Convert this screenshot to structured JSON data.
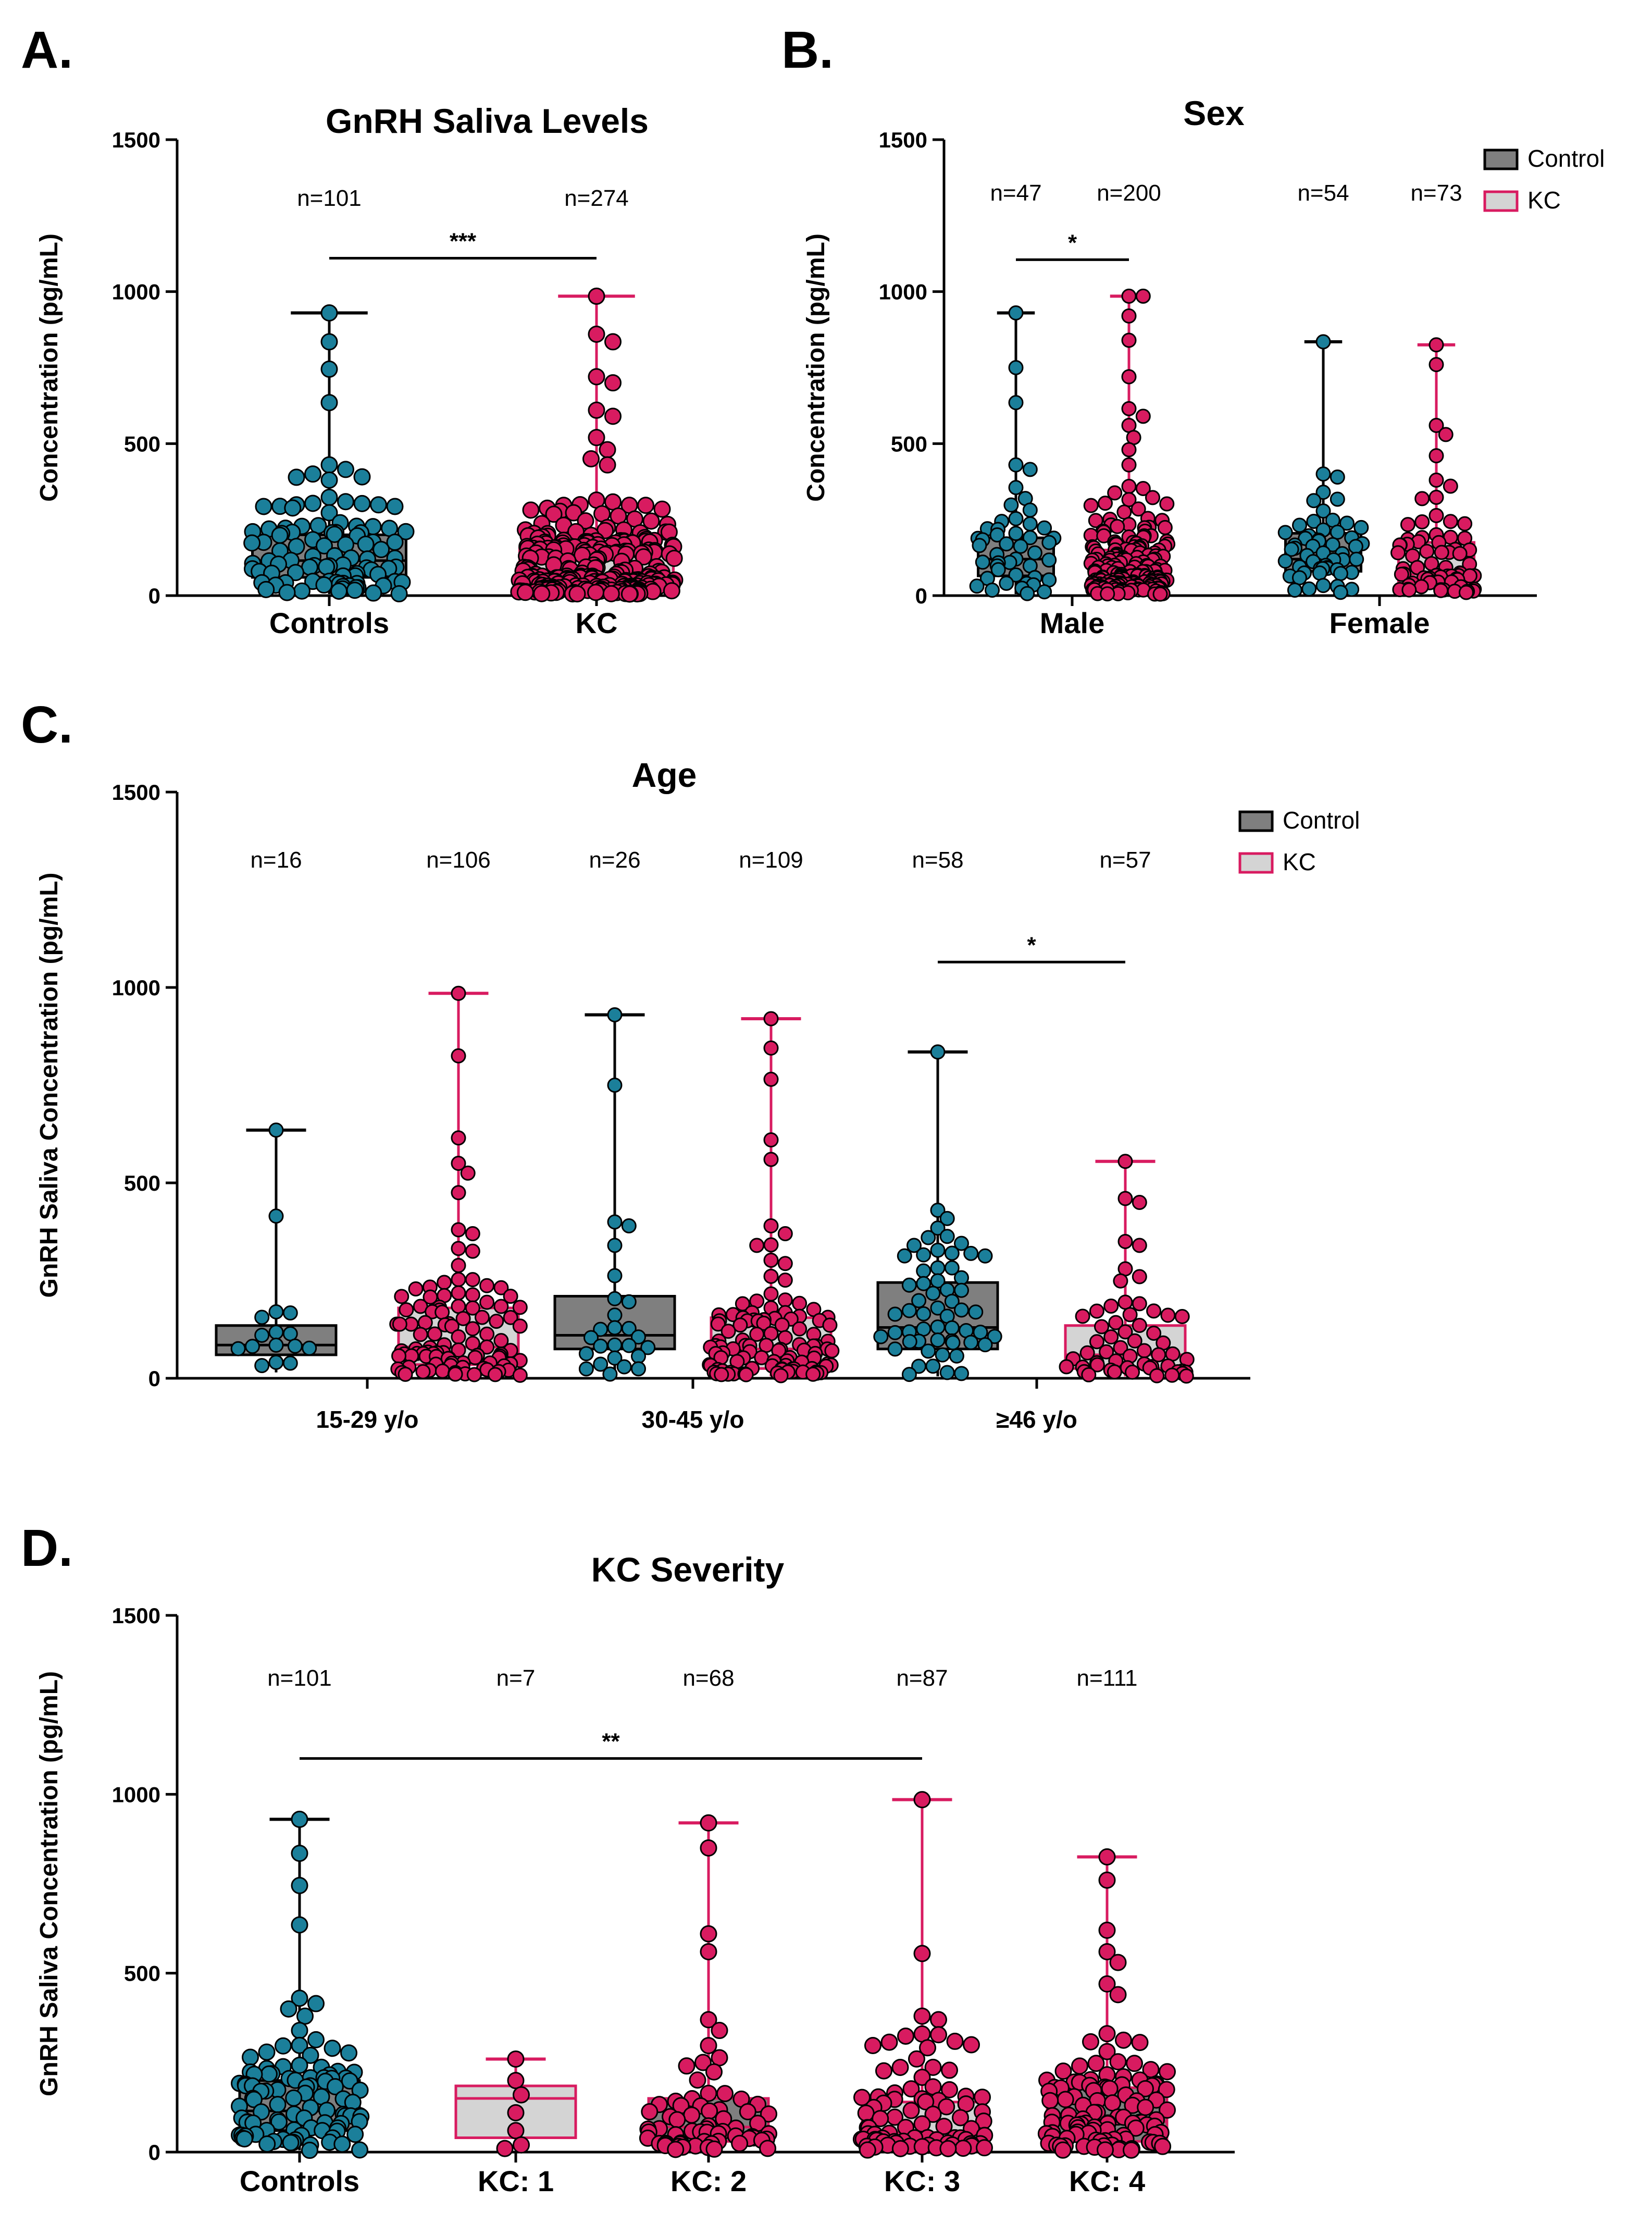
{
  "colors": {
    "control_fill": "#7f7f7f",
    "kc_fill": "#d4d4d4",
    "control_point": "#1b7f9a",
    "kc_point": "#d81b60",
    "kc_edge": "#d81b60",
    "axis": "#000000"
  },
  "chart_data": [
    {
      "id": "A",
      "panel_label": "A.",
      "type": "box-swarm",
      "title": "GnRH Saliva Levels",
      "ylabel": "Concentration (pg/mL)",
      "ylim": [
        0,
        1500
      ],
      "yticks": [
        "0",
        "500",
        "1000",
        "1500"
      ],
      "categories": [
        "Controls",
        "KC"
      ],
      "groups": [
        {
          "category": "Controls",
          "series": "Control",
          "n": "n=101",
          "count": 101,
          "q1": 60,
          "median": 115,
          "q3": 200,
          "min": 5,
          "max": 930,
          "outliers": [
            930,
            835,
            745,
            635,
            430,
            415,
            400,
            380
          ]
        },
        {
          "category": "KC",
          "series": "KC",
          "n": "n=274",
          "count": 274,
          "q1": 30,
          "median": 65,
          "q3": 155,
          "min": 5,
          "max": 985,
          "outliers": [
            985,
            860,
            835,
            720,
            700,
            610,
            590,
            520,
            480,
            450,
            430
          ]
        }
      ],
      "significance": [
        {
          "from": 0,
          "to": 1,
          "label": "***",
          "y": 1110
        }
      ]
    },
    {
      "id": "B",
      "panel_label": "B.",
      "type": "box-swarm",
      "title": "Sex",
      "ylabel": "Concentration (pg/mL)",
      "ylim": [
        0,
        1500
      ],
      "yticks": [
        "0",
        "500",
        "1000",
        "1500"
      ],
      "categories": [
        "Male",
        "Female"
      ],
      "legend": [
        {
          "name": "Control"
        },
        {
          "name": "KC"
        }
      ],
      "groups": [
        {
          "category": "Male",
          "series": "Control",
          "n": "n=47",
          "count": 47,
          "q1": 65,
          "median": 120,
          "q3": 190,
          "min": 5,
          "max": 930,
          "outliers": [
            930,
            750,
            635,
            430,
            415
          ]
        },
        {
          "category": "Male",
          "series": "KC",
          "n": "n=200",
          "count": 200,
          "q1": 30,
          "median": 65,
          "q3": 150,
          "min": 5,
          "max": 985,
          "outliers": [
            985,
            985,
            920,
            840,
            720,
            615,
            590,
            560,
            520,
            480,
            430
          ]
        },
        {
          "category": "Female",
          "series": "Control",
          "n": "n=54",
          "count": 54,
          "q1": 80,
          "median": 120,
          "q3": 205,
          "min": 10,
          "max": 835,
          "outliers": [
            835,
            400,
            390,
            340
          ]
        },
        {
          "category": "Female",
          "series": "KC",
          "n": "n=73",
          "count": 73,
          "q1": 40,
          "median": 70,
          "q3": 175,
          "min": 5,
          "max": 825,
          "outliers": [
            825,
            760,
            560,
            530,
            460,
            380,
            360
          ]
        }
      ],
      "significance": [
        {
          "from": 0,
          "to": 1,
          "label": "*",
          "y": 1105
        }
      ]
    },
    {
      "id": "C",
      "panel_label": "C.",
      "type": "box-swarm",
      "title": "Age",
      "ylabel": "GnRH Saliva Concentration (pg/mL)",
      "ylim": [
        0,
        1500
      ],
      "yticks": [
        "0",
        "500",
        "1000",
        "1500"
      ],
      "categories": [
        "15-29 y/o",
        "30-45 y/o",
        "≥46 y/o"
      ],
      "legend": [
        {
          "name": "Control"
        },
        {
          "name": "KC"
        }
      ],
      "groups": [
        {
          "category": "15-29 y/o",
          "series": "Control",
          "n": "n=16",
          "count": 16,
          "q1": 60,
          "median": 85,
          "q3": 135,
          "min": 15,
          "max": 635,
          "outliers": [
            635,
            415,
            170
          ]
        },
        {
          "category": "15-29 y/o",
          "series": "KC",
          "n": "n=106",
          "count": 106,
          "q1": 35,
          "median": 80,
          "q3": 180,
          "min": 5,
          "max": 985,
          "outliers": [
            985,
            825,
            615,
            550,
            525,
            475,
            380,
            370
          ]
        },
        {
          "category": "30-45 y/o",
          "series": "Control",
          "n": "n=26",
          "count": 26,
          "q1": 75,
          "median": 110,
          "q3": 210,
          "min": 5,
          "max": 930,
          "outliers": [
            930,
            750,
            400,
            390,
            340
          ]
        },
        {
          "category": "30-45 y/o",
          "series": "KC",
          "n": "n=109",
          "count": 109,
          "q1": 25,
          "median": 75,
          "q3": 155,
          "min": 5,
          "max": 920,
          "outliers": [
            920,
            845,
            765,
            610,
            560,
            390,
            370,
            340
          ]
        },
        {
          "category": "≥46 y/o",
          "series": "Control",
          "n": "n=58",
          "count": 58,
          "q1": 75,
          "median": 130,
          "q3": 245,
          "min": 5,
          "max": 835,
          "outliers": [
            835,
            430,
            360,
            340,
            320
          ]
        },
        {
          "category": "≥46 y/o",
          "series": "KC",
          "n": "n=57",
          "count": 57,
          "q1": 25,
          "median": 60,
          "q3": 135,
          "min": 5,
          "max": 555,
          "outliers": [
            555,
            460,
            450,
            350,
            340,
            280,
            260
          ]
        }
      ],
      "significance": [
        {
          "from": 4,
          "to": 5,
          "label": "*",
          "y": 1065
        }
      ]
    },
    {
      "id": "D",
      "panel_label": "D.",
      "type": "box-swarm",
      "title": "KC Severity",
      "ylabel": "GnRH Saliva Concentration (pg/mL)",
      "ylim": [
        0,
        1500
      ],
      "yticks": [
        "0",
        "500",
        "1000",
        "1500"
      ],
      "categories": [
        "Controls",
        "KC: 1",
        "KC: 2",
        "KC: 3",
        "KC: 4"
      ],
      "groups": [
        {
          "category": "Controls",
          "series": "Control",
          "n": "n=101",
          "count": 101,
          "q1": 60,
          "median": 115,
          "q3": 200,
          "min": 5,
          "max": 930,
          "outliers": [
            930,
            835,
            745,
            635,
            430,
            415,
            400,
            380
          ]
        },
        {
          "category": "KC: 1",
          "series": "KC",
          "boxfill": "#d4d4d4",
          "n": "n=7",
          "count": 7,
          "q1": 40,
          "median": 150,
          "q3": 185,
          "min": 10,
          "max": 260,
          "outliers": [
            260,
            200,
            160,
            110,
            60,
            20,
            10
          ]
        },
        {
          "category": "KC: 2",
          "series": "KC",
          "boxfill": "#7f7f7f",
          "n": "n=68",
          "count": 68,
          "q1": 30,
          "median": 70,
          "q3": 150,
          "min": 5,
          "max": 920,
          "outliers": [
            920,
            850,
            610,
            560,
            370,
            340
          ]
        },
        {
          "category": "KC: 3",
          "series": "KC",
          "boxfill": "#d4d4d4",
          "n": "n=87",
          "count": 87,
          "q1": 20,
          "median": 55,
          "q3": 140,
          "min": 5,
          "max": 985,
          "outliers": [
            985,
            555,
            380,
            370,
            330,
            300
          ]
        },
        {
          "category": "KC: 4",
          "series": "KC",
          "boxfill": "#7f7f7f",
          "n": "n=111",
          "count": 111,
          "q1": 30,
          "median": 85,
          "q3": 180,
          "min": 5,
          "max": 825,
          "outliers": [
            825,
            760,
            620,
            560,
            530,
            470,
            440
          ]
        }
      ],
      "significance": [
        {
          "from": 0,
          "to": 3,
          "label": "**",
          "y": 1100
        }
      ]
    }
  ]
}
